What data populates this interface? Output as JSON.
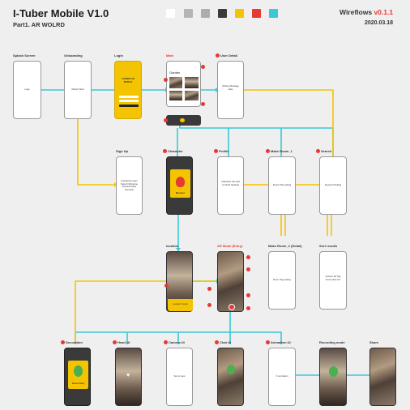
{
  "header": {
    "title": "I-Tuber Mobile V1.0",
    "subtitle": "Part1. AR WOLRD",
    "wireflows_label": "Wireflows",
    "version": "v0.1.1",
    "date": "2020.03.18"
  },
  "palette": [
    "#ffffff",
    "#b5b5b5",
    "#a9aeb2",
    "#3a3a3a",
    "#f5c400",
    "#e53935",
    "#3ac8d8"
  ],
  "colors": {
    "flow_cyan": "#3ac8d8",
    "flow_yellow": "#f5c400",
    "badge_red": "#e53935",
    "screen_dark": "#3a3a3a"
  },
  "screens": {
    "splash": {
      "label": "Splash Screen",
      "content": "Logo"
    },
    "onboarding": {
      "label": "Onboarding",
      "content": "Motion Start"
    },
    "login": {
      "label": "Login",
      "logo": "I-TUBER AR WORLD"
    },
    "main": {
      "label": "Main",
      "header": "Garden"
    },
    "user_detail": {
      "label": "User Detail",
      "content": "Setting Message Help"
    },
    "sign_up": {
      "label": "Sign Up",
      "content": "Facebook Login Select Nickname Questionnaire Scenario"
    },
    "character": {
      "label": "Character",
      "name": "Monster"
    },
    "profile": {
      "label": "Profile",
      "content": "Character Set Add to friend Settings"
    },
    "make_room_1": {
      "label": "Make Room_1",
      "content": "Room Title setting"
    },
    "search": {
      "label": "Search",
      "content": "Keyword Setting"
    },
    "location": {
      "label": "location",
      "content": "Location Guide"
    },
    "ar_mode": {
      "label": "AR Mode (Entry)"
    },
    "make_room_2": {
      "label": "Make Room_2 (Detail)",
      "content": "Room Tag setting"
    },
    "sort_results": {
      "label": "Sort results",
      "content": "Answer list Tag list Control UX"
    },
    "decoration": {
      "label": "Decoration",
      "name": "Green Fairy"
    },
    "heart_ui": {
      "label": "Heart UI"
    },
    "camera_ui": {
      "label": "Camera UI",
      "content": "Set to view"
    },
    "chat_ui": {
      "label": "Chat UI"
    },
    "animation_ui": {
      "label": "Animation UI",
      "content": "X animation"
    },
    "recording_mode": {
      "label": "Recording mode"
    },
    "share": {
      "label": "Share"
    }
  }
}
